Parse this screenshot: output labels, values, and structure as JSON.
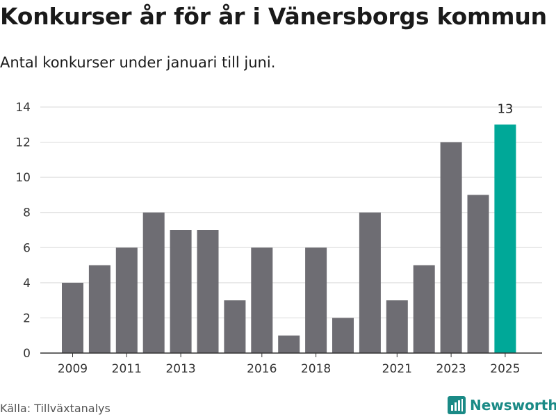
{
  "title": "Konkurser år för år i Vänersborgs kommun",
  "subtitle": "Antal konkurser under januari till juni.",
  "source": "Källa: Tillväxtanalys",
  "logo": {
    "text": "Newsworthy",
    "icon": "newsworthy-logo-icon"
  },
  "colors": {
    "bar": "#6e6d73",
    "highlight": "#00a898",
    "grid": "#d9d9d9",
    "axis": "#333333"
  },
  "chart_data": {
    "type": "bar",
    "title": "Konkurser år för år i Vänersborgs kommun",
    "subtitle": "Antal konkurser under januari till juni.",
    "categories": [
      "2009",
      "2010",
      "2011",
      "2012",
      "2013",
      "2014",
      "2015",
      "2016",
      "2017",
      "2018",
      "2019",
      "2020",
      "2021",
      "2022",
      "2023",
      "2024",
      "2025"
    ],
    "values": [
      4,
      5,
      6,
      8,
      7,
      7,
      3,
      6,
      1,
      6,
      2,
      8,
      3,
      5,
      12,
      9,
      13
    ],
    "x_tick_labels": [
      "2009",
      "2011",
      "2013",
      "2016",
      "2018",
      "2021",
      "2023",
      "2025"
    ],
    "y_ticks": [
      "0",
      "2",
      "4",
      "6",
      "8",
      "10",
      "12",
      "14"
    ],
    "ylim": [
      0,
      14
    ],
    "highlight_category": "2025",
    "data_labels": [
      {
        "category": "2025",
        "text": "13"
      }
    ],
    "grid": true,
    "legend": "none"
  }
}
